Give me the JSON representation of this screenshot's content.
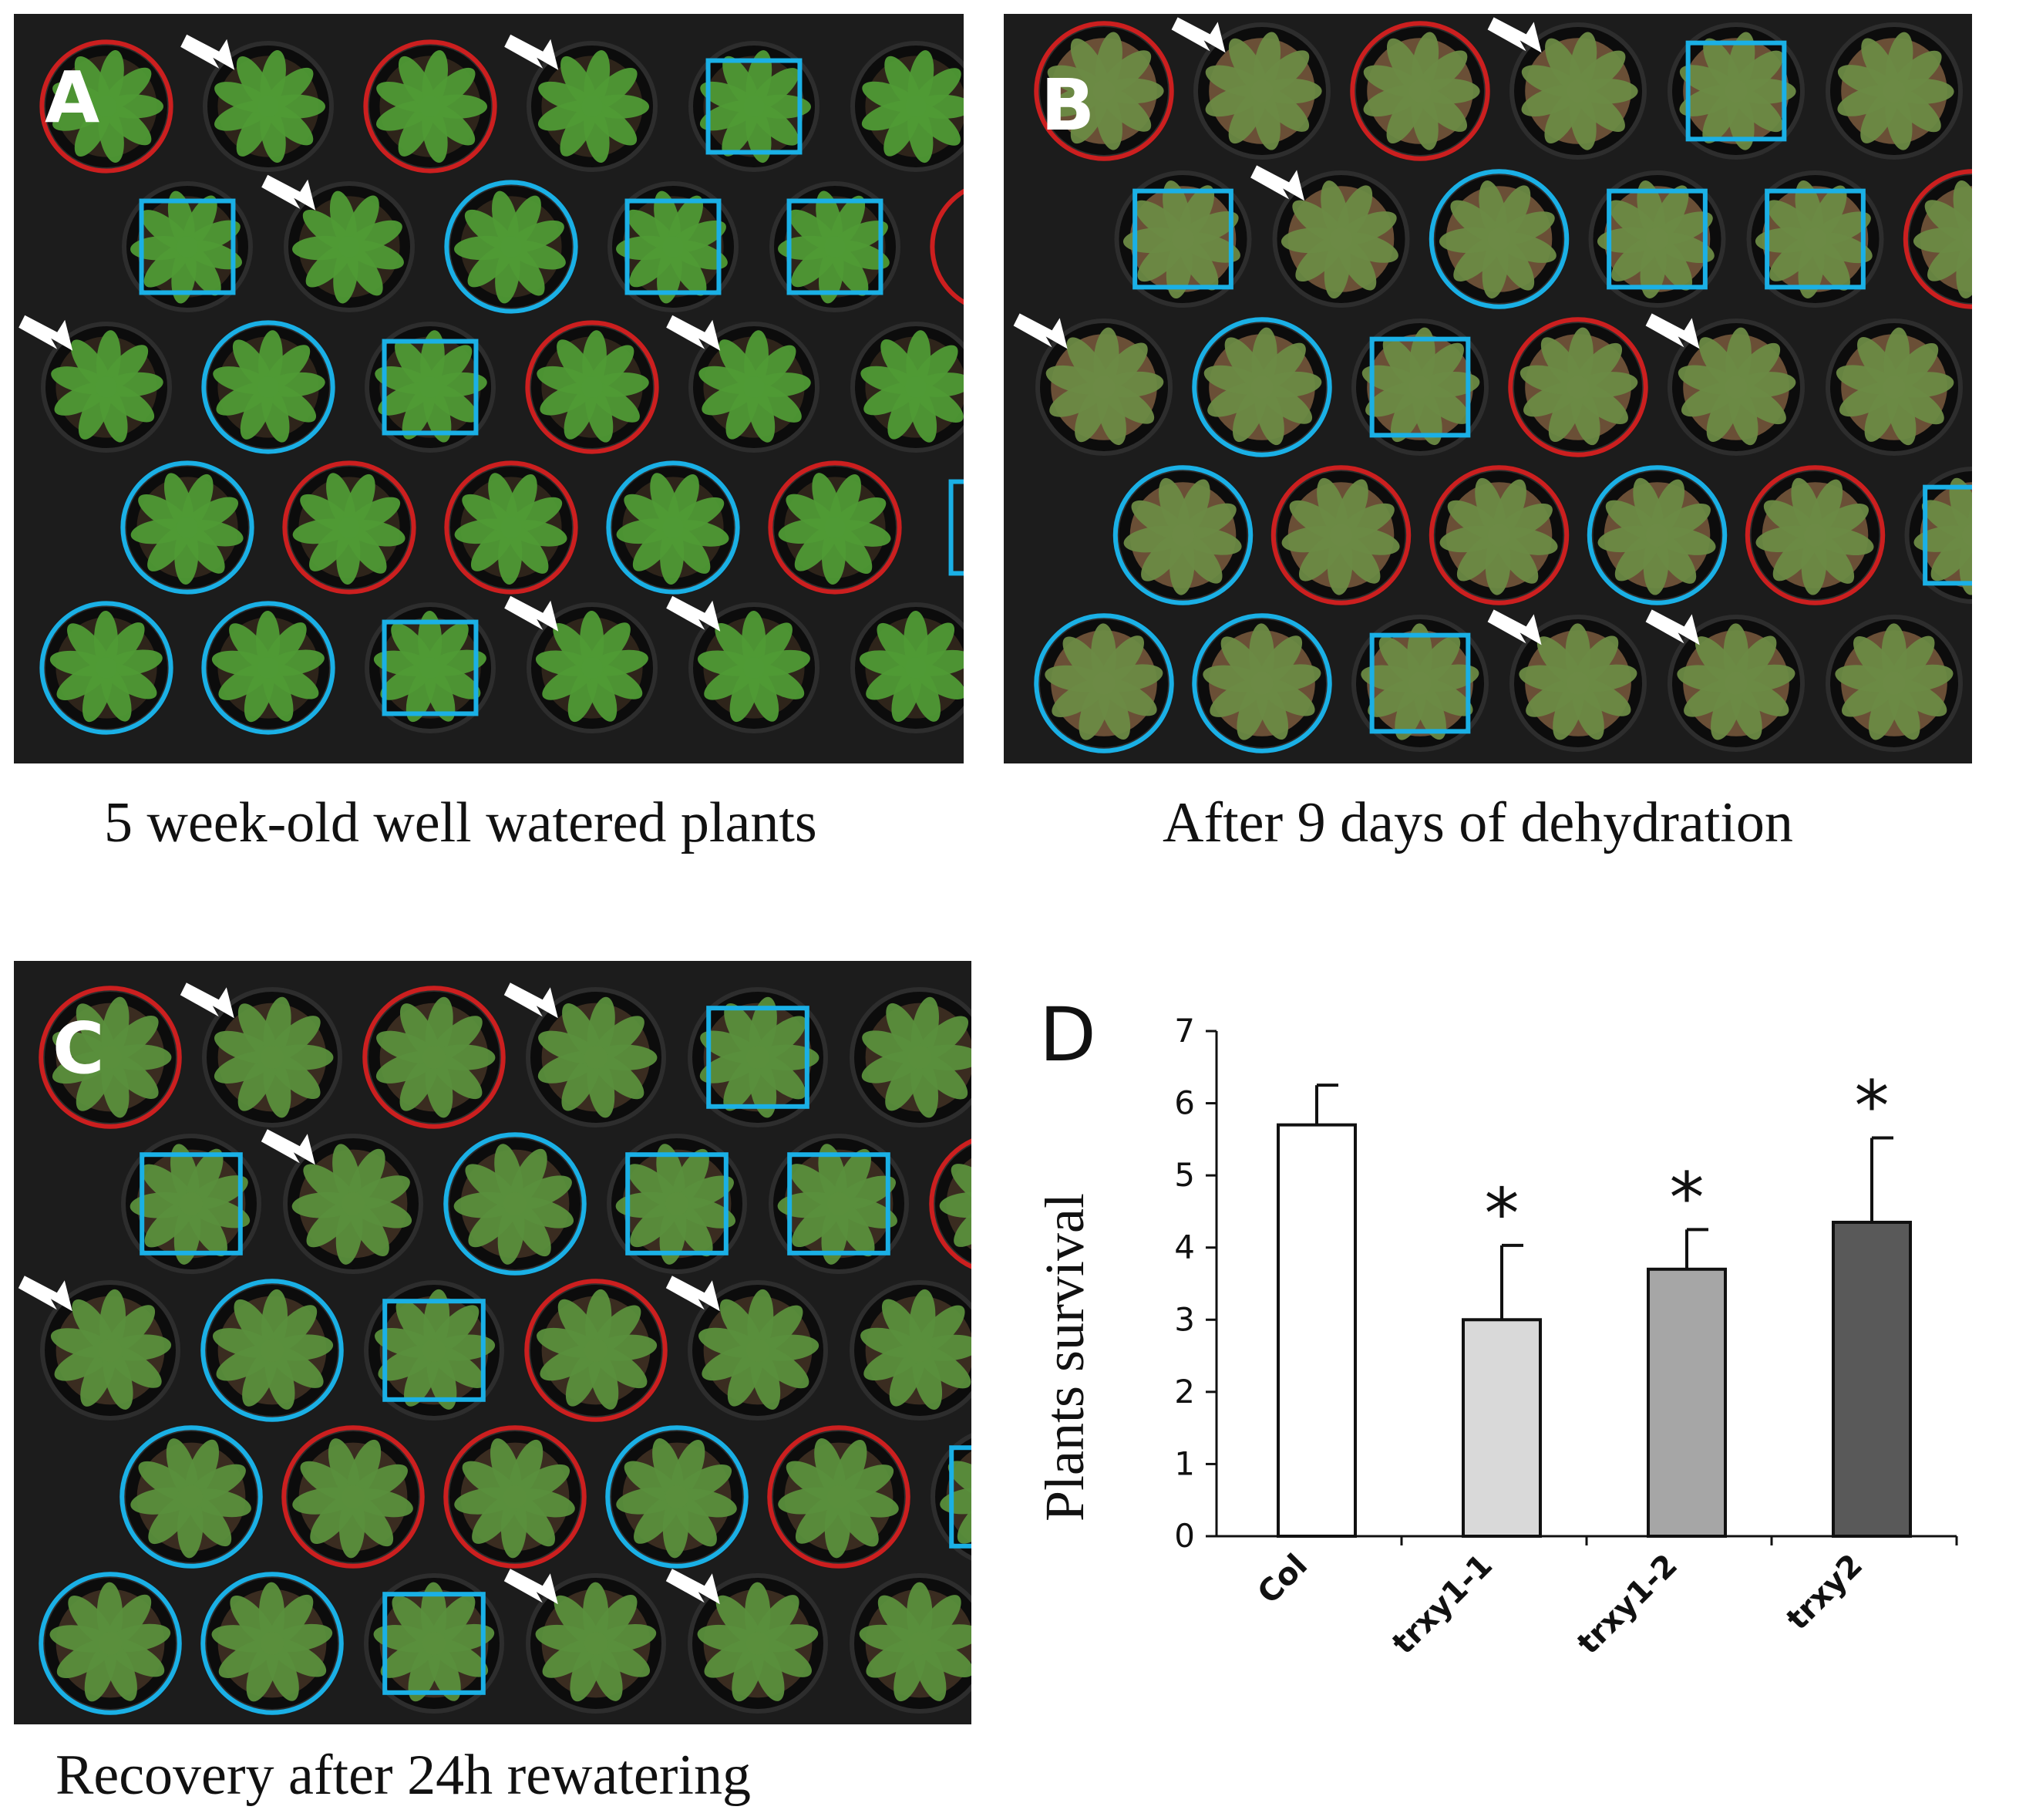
{
  "panels": {
    "a": {
      "letter": "A",
      "caption": "5 week-old well watered plants"
    },
    "b": {
      "letter": "B",
      "caption": "After 9 days of dehydration"
    },
    "c": {
      "letter": "C",
      "caption": "Recovery after 24h  rewatering"
    },
    "d": {
      "letter": "D"
    }
  },
  "colors": {
    "red_marker": "#cc1f1f",
    "blue_marker": "#1ab0e6",
    "arrow": "#ffffff",
    "tray": "#1c1c1c",
    "leaf_a": "#4f9a35",
    "leaf_b": "#6c8a45",
    "leaf_c": "#5a8f3c"
  },
  "chart_data": {
    "type": "bar",
    "categories": [
      "Col",
      "trxy1-1",
      "trxy1-2",
      "trxy2"
    ],
    "values": [
      5.7,
      3.0,
      3.7,
      4.35
    ],
    "errors": [
      0.55,
      1.03,
      0.55,
      1.17
    ],
    "significant": [
      false,
      true,
      true,
      true
    ],
    "significance_mark": "*",
    "bar_colors": [
      "#ffffff",
      "#d9d9d9",
      "#a6a6a6",
      "#595959"
    ],
    "ylabel": "Plants survival",
    "xlabel": "",
    "ylim": [
      0,
      7
    ],
    "yticks": [
      0,
      1,
      2,
      3,
      4,
      5,
      6,
      7
    ]
  }
}
